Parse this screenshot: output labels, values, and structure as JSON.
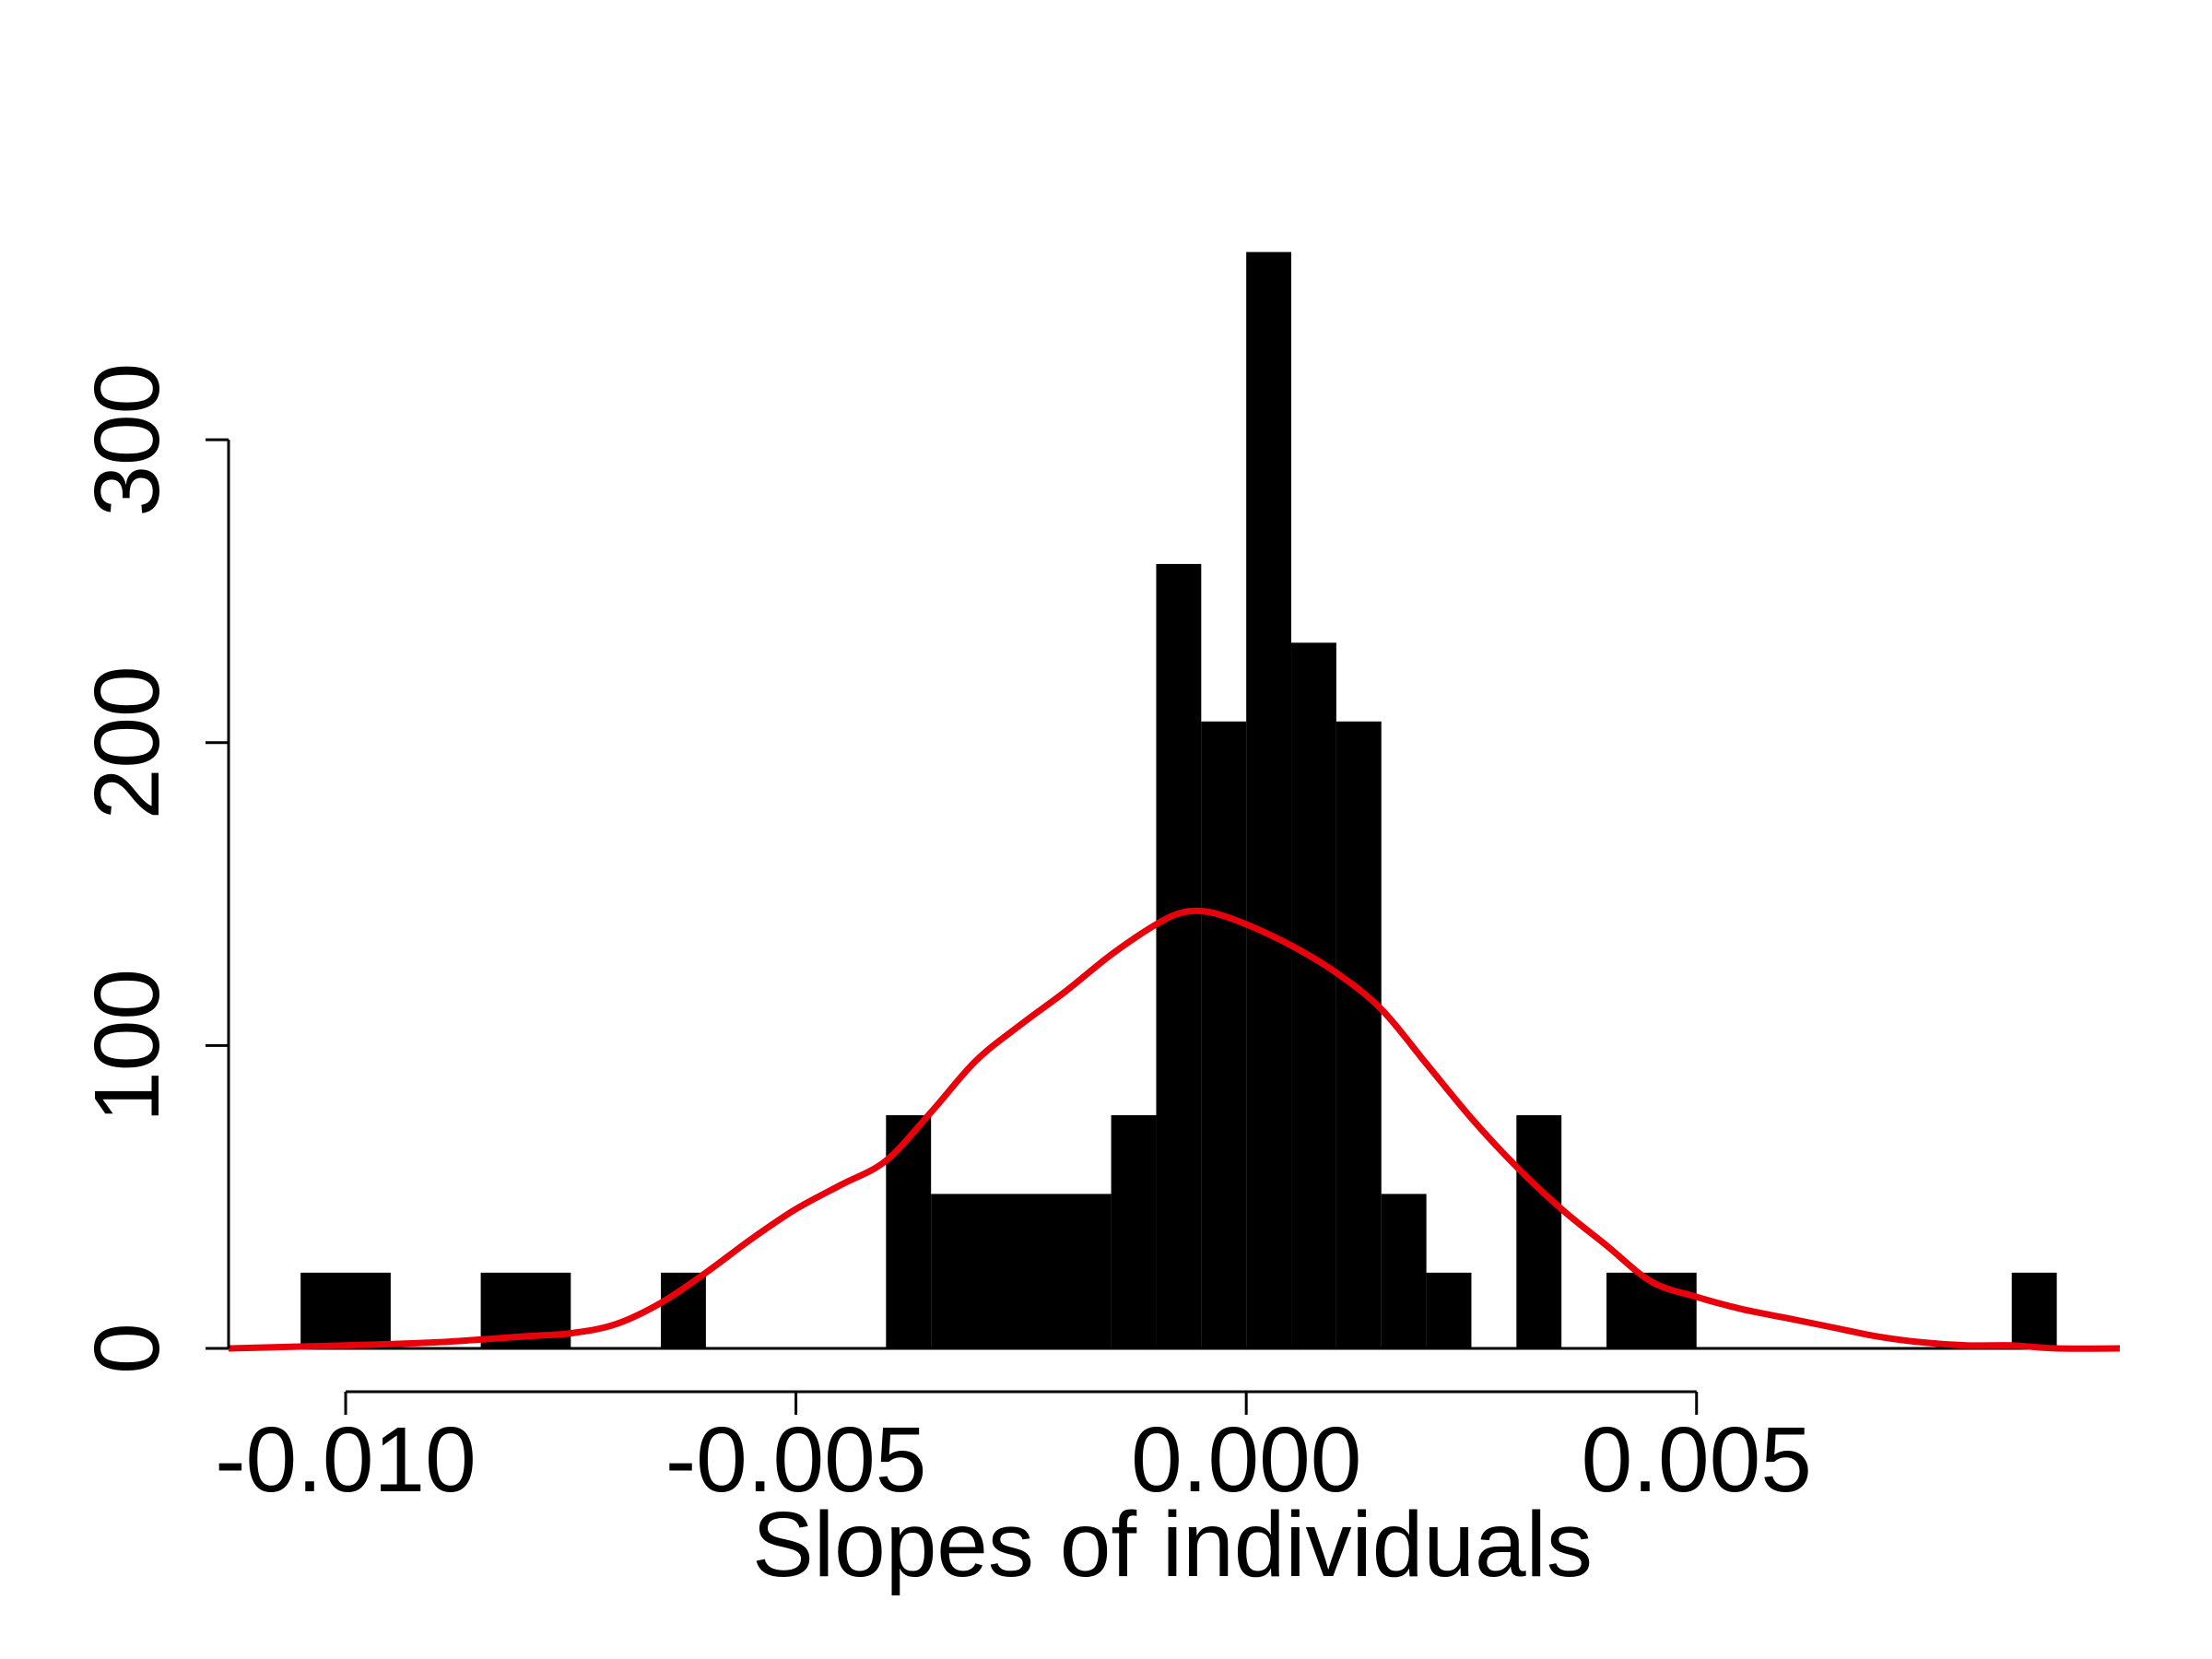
{
  "chart_data": {
    "type": "bar",
    "subtype": "histogram-with-density",
    "title": "",
    "xlabel": "Slopes of individuals",
    "ylabel": "",
    "xlim": [
      -0.0113,
      0.0097
    ],
    "ylim": [
      0,
      360
    ],
    "bin_width": 0.0005,
    "grid": false,
    "legend": "none",
    "x_ticks": [
      {
        "value": -0.01,
        "label": "-0.010"
      },
      {
        "value": -0.005,
        "label": "-0.005"
      },
      {
        "value": 0.0,
        "label": "0.000"
      },
      {
        "value": 0.005,
        "label": "0.005"
      }
    ],
    "y_ticks": [
      {
        "value": 0,
        "label": "0"
      },
      {
        "value": 100,
        "label": "100"
      },
      {
        "value": 200,
        "label": "200"
      },
      {
        "value": 300,
        "label": "300"
      }
    ],
    "bins": [
      {
        "start": -0.0105,
        "end": -0.0095,
        "count": 25
      },
      {
        "start": -0.0085,
        "end": -0.0075,
        "count": 25
      },
      {
        "start": -0.0065,
        "end": -0.006,
        "count": 25
      },
      {
        "start": -0.004,
        "end": -0.0035,
        "count": 77
      },
      {
        "start": -0.0035,
        "end": -0.0015,
        "count": 51
      },
      {
        "start": -0.0015,
        "end": -0.001,
        "count": 77
      },
      {
        "start": -0.001,
        "end": -0.0005,
        "count": 259
      },
      {
        "start": -0.0005,
        "end": 0.0,
        "count": 207
      },
      {
        "start": 0.0,
        "end": 0.0005,
        "count": 362
      },
      {
        "start": 0.0005,
        "end": 0.001,
        "count": 233
      },
      {
        "start": 0.001,
        "end": 0.0015,
        "count": 207
      },
      {
        "start": 0.0015,
        "end": 0.002,
        "count": 51
      },
      {
        "start": 0.002,
        "end": 0.0025,
        "count": 25
      },
      {
        "start": 0.003,
        "end": 0.0035,
        "count": 77
      },
      {
        "start": 0.004,
        "end": 0.005,
        "count": 25
      },
      {
        "start": 0.0085,
        "end": 0.009,
        "count": 25
      }
    ],
    "density_curve": {
      "color": "#e8000b",
      "x": [
        -0.0113,
        -0.01,
        -0.009,
        -0.008,
        -0.0075,
        -0.007,
        -0.0065,
        -0.006,
        -0.0055,
        -0.005,
        -0.0045,
        -0.004,
        -0.0035,
        -0.003,
        -0.0025,
        -0.002,
        -0.0015,
        -0.001,
        -0.0007,
        -0.0004,
        0.0,
        0.0005,
        0.001,
        0.0015,
        0.002,
        0.0025,
        0.003,
        0.0035,
        0.004,
        0.0045,
        0.005,
        0.0055,
        0.006,
        0.0065,
        0.007,
        0.0075,
        0.008,
        0.0085,
        0.009,
        0.0097
      ],
      "y": [
        0,
        1,
        2,
        4,
        5,
        8,
        15,
        25,
        36,
        46,
        54,
        62,
        78,
        95,
        107,
        118,
        130,
        140,
        144,
        144,
        140,
        133,
        124,
        112,
        94,
        76,
        60,
        46,
        34,
        22,
        17,
        13,
        10,
        7,
        4,
        2,
        1,
        1,
        0,
        0
      ]
    },
    "bar_color": "#000000"
  }
}
